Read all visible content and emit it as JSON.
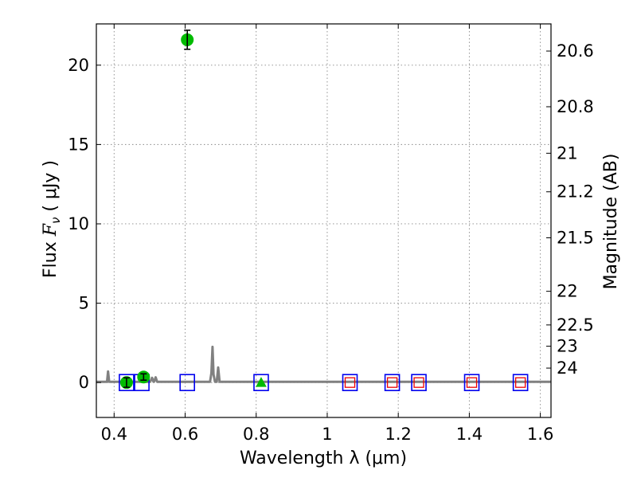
{
  "chart_data": {
    "type": "scatter",
    "title": "",
    "xlabel": "Wavelength  λ (μm)",
    "ylabel_parts": [
      "Flux  ",
      "F",
      "ν",
      "  (  μJy  )"
    ],
    "ylabel_right": "Magnitude (AB)",
    "xlim": [
      0.35,
      1.63
    ],
    "ylim": [
      -2.2,
      22.6
    ],
    "grid": true,
    "legend": "none",
    "x_ticks": [
      {
        "value": 0.4,
        "label": "0.4"
      },
      {
        "value": 0.6,
        "label": "0.6"
      },
      {
        "value": 0.8,
        "label": "0.8"
      },
      {
        "value": 1.0,
        "label": "1"
      },
      {
        "value": 1.2,
        "label": "1.2"
      },
      {
        "value": 1.4,
        "label": "1.4"
      },
      {
        "value": 1.6,
        "label": "1.6"
      }
    ],
    "y_ticks": [
      {
        "value": 0,
        "label": "0"
      },
      {
        "value": 5,
        "label": "5"
      },
      {
        "value": 10,
        "label": "10"
      },
      {
        "value": 15,
        "label": "15"
      },
      {
        "value": 20,
        "label": "20"
      }
    ],
    "magnitude_ticks": [
      {
        "label": "20.6",
        "flux": 20.89
      },
      {
        "label": "20.8",
        "flux": 17.38
      },
      {
        "label": "21",
        "flux": 14.45
      },
      {
        "label": "21.2",
        "flux": 12.02
      },
      {
        "label": "21.5",
        "flux": 9.12
      },
      {
        "label": "22",
        "flux": 5.75
      },
      {
        "label": "22.5",
        "flux": 3.63
      },
      {
        "label": "23",
        "flux": 2.29
      },
      {
        "label": "24",
        "flux": 0.91
      }
    ],
    "colors": {
      "observed": "#00bb00",
      "model_box": "#0000ee",
      "model_inner": "#ee0000",
      "spectrum": "#808080",
      "grid": "#888888",
      "axis": "#000000"
    },
    "observed_points": [
      {
        "x": 0.435,
        "y": 0.0,
        "yerr": 0.3,
        "marker": "circle"
      },
      {
        "x": 0.483,
        "y": 0.35,
        "yerr": 0.2,
        "marker": "circle"
      },
      {
        "x": 0.606,
        "y": 21.6,
        "yerr": 0.6,
        "marker": "circle"
      },
      {
        "x": 0.814,
        "y": 0.0,
        "yerr": 0,
        "marker": "triangle"
      }
    ],
    "model_points": [
      {
        "x": 0.435,
        "y": 0.0,
        "inner": false
      },
      {
        "x": 0.478,
        "y": 0.0,
        "inner": false
      },
      {
        "x": 0.606,
        "y": 0.0,
        "inner": false
      },
      {
        "x": 0.814,
        "y": 0.0,
        "inner": false
      },
      {
        "x": 1.064,
        "y": 0.0,
        "inner": true
      },
      {
        "x": 1.183,
        "y": 0.0,
        "inner": true
      },
      {
        "x": 1.258,
        "y": 0.0,
        "inner": true
      },
      {
        "x": 1.407,
        "y": 0.0,
        "inner": true
      },
      {
        "x": 1.544,
        "y": 0.0,
        "inner": true
      }
    ],
    "spectrum": [
      [
        0.35,
        0.05
      ],
      [
        0.38,
        0.05
      ],
      [
        0.383,
        0.7
      ],
      [
        0.386,
        0.05
      ],
      [
        0.5,
        0.05
      ],
      [
        0.503,
        0.12
      ],
      [
        0.507,
        0.3
      ],
      [
        0.511,
        0.05
      ],
      [
        0.513,
        0.08
      ],
      [
        0.517,
        0.33
      ],
      [
        0.521,
        0.05
      ],
      [
        0.67,
        0.05
      ],
      [
        0.674,
        0.6
      ],
      [
        0.677,
        2.25
      ],
      [
        0.68,
        0.5
      ],
      [
        0.684,
        0.05
      ],
      [
        0.689,
        0.05
      ],
      [
        0.693,
        0.95
      ],
      [
        0.697,
        0.05
      ],
      [
        1.63,
        0.05
      ]
    ]
  }
}
